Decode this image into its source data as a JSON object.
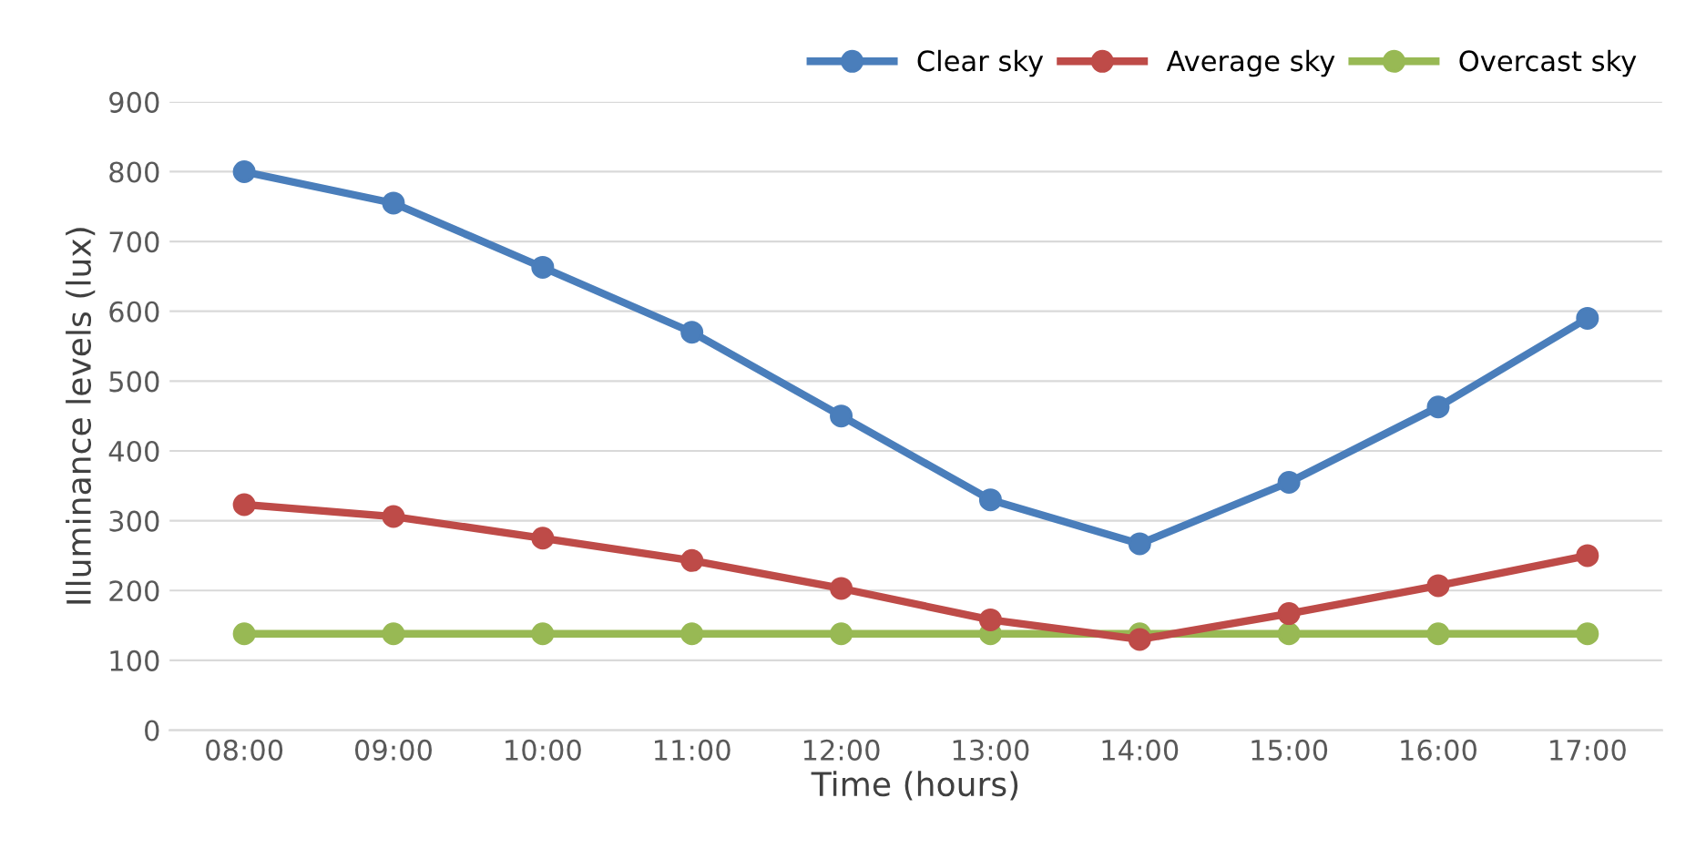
{
  "chart_data": {
    "type": "line",
    "xlabel": "Time (hours)",
    "ylabel": "Illuminance levels (lux)",
    "categories": [
      "08:00",
      "09:00",
      "10:00",
      "11:00",
      "12:00",
      "13:00",
      "14:00",
      "15:00",
      "16:00",
      "17:00"
    ],
    "series": [
      {
        "name": "Clear sky",
        "color": "#4a7ebb",
        "values": [
          800,
          755,
          663,
          570,
          450,
          330,
          267,
          355,
          463,
          590
        ]
      },
      {
        "name": "Average sky",
        "color": "#be4b48",
        "values": [
          323,
          306,
          275,
          243,
          203,
          158,
          130,
          167,
          207,
          250
        ]
      },
      {
        "name": "Overcast sky",
        "color": "#98b954",
        "values": [
          138,
          138,
          138,
          138,
          138,
          138,
          138,
          138,
          138,
          138
        ]
      }
    ],
    "ylim": [
      0,
      900
    ],
    "yticks": [
      0,
      100,
      200,
      300,
      400,
      500,
      600,
      700,
      800,
      900
    ],
    "grid": "y",
    "legend": "top right",
    "marker": "circle",
    "line_style": "solid"
  }
}
